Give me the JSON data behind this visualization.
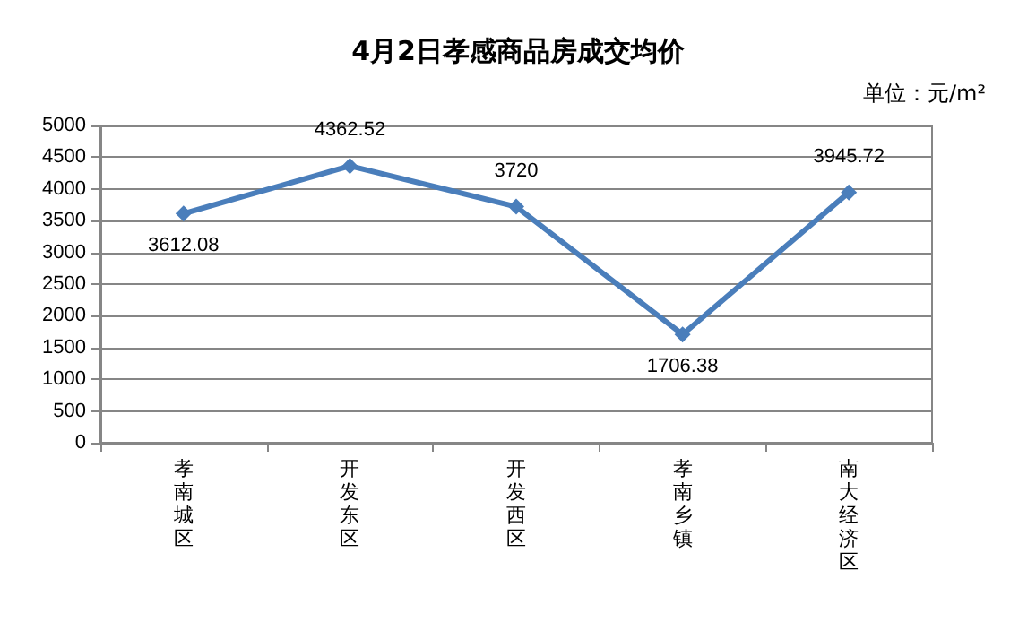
{
  "chart_data": {
    "type": "line",
    "title": "4月2日孝感商品房成交均价",
    "annotations": [
      "单位：元/m²"
    ],
    "categories": [
      "孝南城区",
      "开发东区",
      "开发西区",
      "孝南乡镇",
      "南大经济区"
    ],
    "series": [
      {
        "color": "#4a7ebb",
        "values": [
          3612.08,
          4362.52,
          3720,
          1706.38,
          3945.72
        ]
      }
    ],
    "ylim": [
      0,
      5000
    ],
    "yticks": [
      0,
      500,
      1000,
      1500,
      2000,
      2500,
      3000,
      3500,
      4000,
      4500,
      5000
    ],
    "grid": "y",
    "marker": "diamond",
    "line_style": "solid",
    "data_labels": true
  }
}
